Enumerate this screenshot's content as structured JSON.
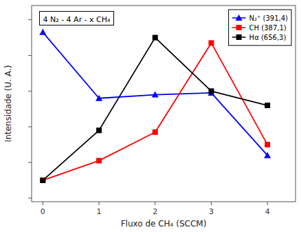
{
  "chart_data": {
    "type": "line",
    "title": "4 N₂ - 4 Ar - x CH₄",
    "x_label": "Fluxo de CH₄ (SCCM)",
    "y_label": "Intensidade (U. A.)",
    "x": [
      0,
      1,
      2,
      3,
      4
    ],
    "series": [
      {
        "name": "N₂⁺ (391,4)",
        "color": "blue",
        "marker": "triangle",
        "line_style": "solid",
        "values": [
          0.93,
          0.56,
          0.58,
          0.59,
          0.24
        ]
      },
      {
        "name": "CH (387,1)",
        "color": "red",
        "marker": "square",
        "line_style": "solid",
        "values": [
          0.1,
          0.21,
          0.37,
          0.87,
          0.3
        ]
      },
      {
        "name": "Hα (656,3)",
        "color": "black",
        "marker": "square",
        "line_style": "solid",
        "values": [
          0.1,
          0.38,
          0.9,
          0.6,
          0.52
        ]
      }
    ],
    "xlim": [
      -0.2,
      4.5
    ],
    "xticks": [
      0,
      1,
      2,
      3,
      4
    ],
    "ylim": [
      -0.02,
      1.08
    ],
    "yticks": [
      0,
      0.2,
      0.4,
      0.6,
      0.8,
      1
    ],
    "tick_labels": "x",
    "grid": false,
    "legend": "upper right"
  }
}
